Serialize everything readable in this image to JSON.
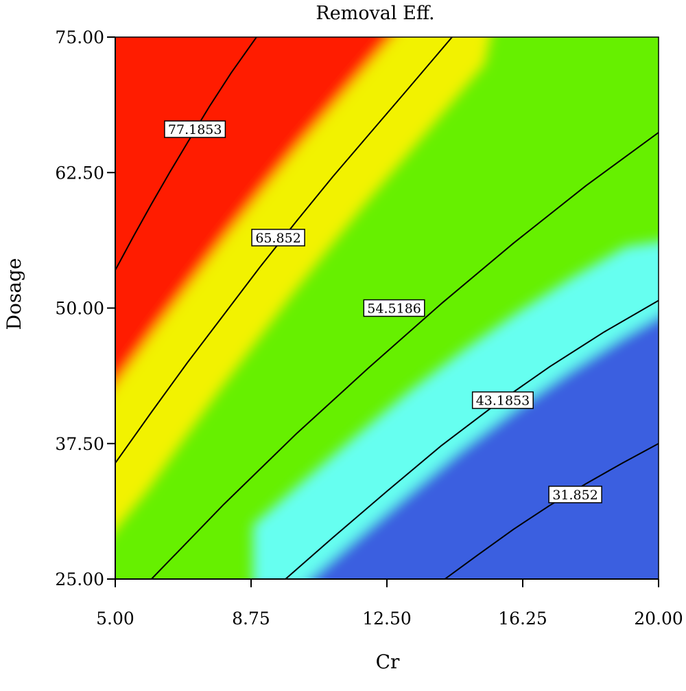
{
  "chart_data": {
    "type": "contour",
    "title": "Removal Eff.",
    "xlabel": "Cr",
    "ylabel": "Dosage",
    "xlim": [
      5.0,
      20.0
    ],
    "ylim": [
      25.0,
      75.0
    ],
    "xticks": [
      "5.00",
      "8.75",
      "12.50",
      "16.25",
      "20.00"
    ],
    "yticks": [
      "25.00",
      "37.50",
      "50.00",
      "62.50",
      "75.00"
    ],
    "xtick_values": [
      5.0,
      8.75,
      12.5,
      16.25,
      20.0
    ],
    "ytick_values": [
      25.0,
      37.5,
      50.0,
      62.5,
      75.0
    ],
    "colors": {
      "high": "#ff1a00",
      "upper_mid": "#f2f200",
      "mid": "#66f000",
      "lower_mid": "#66fff0",
      "low": "#3a5ee0"
    },
    "contours": [
      {
        "level": 77.1853,
        "label": "77.1853",
        "points": [
          [
            5.0,
            53.5
          ],
          [
            5.5,
            56.6
          ],
          [
            6.0,
            59.6
          ],
          [
            6.5,
            62.5
          ],
          [
            7.0,
            65.3
          ],
          [
            7.6,
            68.6
          ],
          [
            8.2,
            71.7
          ],
          [
            8.9,
            75.0
          ]
        ]
      },
      {
        "level": 65.852,
        "label": "65.852",
        "points": [
          [
            5.0,
            35.7
          ],
          [
            6.0,
            40.4
          ],
          [
            7.0,
            45.0
          ],
          [
            8.0,
            49.4
          ],
          [
            9.0,
            53.8
          ],
          [
            10.0,
            58.0
          ],
          [
            11.0,
            62.1
          ],
          [
            12.0,
            66.0
          ],
          [
            13.0,
            69.9
          ],
          [
            14.3,
            75.0
          ]
        ]
      },
      {
        "level": 54.5186,
        "label": "54.5186",
        "points": [
          [
            6.0,
            25.0
          ],
          [
            8.0,
            31.9
          ],
          [
            10.0,
            38.4
          ],
          [
            12.0,
            44.5
          ],
          [
            14.0,
            50.4
          ],
          [
            16.0,
            56.0
          ],
          [
            18.0,
            61.3
          ],
          [
            20.0,
            66.2
          ]
        ]
      },
      {
        "level": 43.1853,
        "label": "43.1853",
        "points": [
          [
            9.7,
            25.0
          ],
          [
            11.0,
            28.8
          ],
          [
            12.5,
            33.1
          ],
          [
            14.0,
            37.3
          ],
          [
            15.5,
            41.1
          ],
          [
            17.0,
            44.6
          ],
          [
            18.5,
            47.8
          ],
          [
            20.0,
            50.7
          ]
        ]
      },
      {
        "level": 31.852,
        "label": "31.852",
        "points": [
          [
            14.1,
            25.0
          ],
          [
            15.0,
            27.2
          ],
          [
            16.0,
            29.6
          ],
          [
            17.0,
            31.8
          ],
          [
            18.0,
            33.8
          ],
          [
            19.0,
            35.7
          ],
          [
            20.0,
            37.5
          ]
        ]
      }
    ],
    "contour_labels": [
      {
        "text": "77.1853",
        "x": 7.2,
        "y": 66.5
      },
      {
        "text": "65.852",
        "x": 9.5,
        "y": 56.5
      },
      {
        "text": "54.5186",
        "x": 12.7,
        "y": 50.0
      },
      {
        "text": "43.1853",
        "x": 15.7,
        "y": 41.5
      },
      {
        "text": "31.852",
        "x": 17.7,
        "y": 32.8
      }
    ]
  }
}
